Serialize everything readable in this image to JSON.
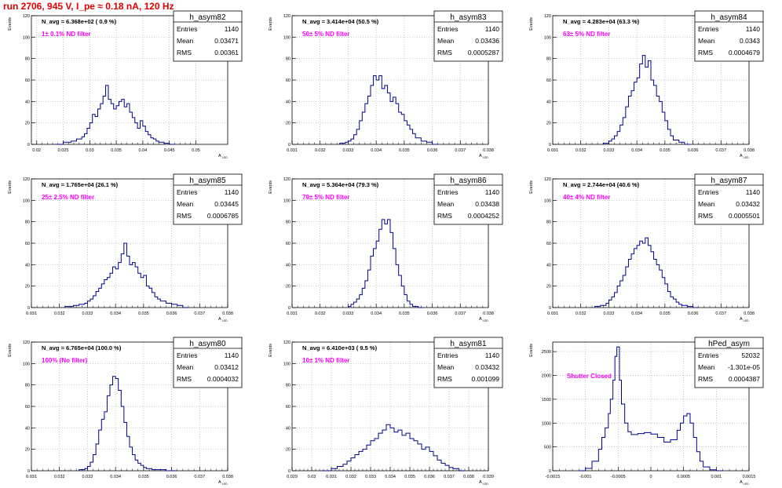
{
  "run_title": "run 2706,   945 V, I_pe ≈ 0.18 nA, 120 Hz",
  "stats_labels": {
    "entries": "Entries",
    "mean": "Mean",
    "rms": "RMS"
  },
  "axis_label_x": "A",
  "axis_label_x_sub": "LED",
  "axis_label_y": "Events",
  "colors": {
    "hist": "#00008b",
    "note": "#ff00ff",
    "title": "#e00000",
    "grid": "#b0b0b0"
  },
  "chart_data": [
    {
      "type": "bar",
      "hist_name": "h_asym82",
      "navg": "N_avg = 6.368e+02 ( 0.9 %)",
      "note": "1± 0.1% ND filter",
      "entries": "1140",
      "mean": "0.03471",
      "rms": "0.00361",
      "xlim": [
        0.019,
        0.056
      ],
      "ylim": [
        0,
        120
      ],
      "xticks": [
        "0.02",
        "0.025",
        "0.03",
        "0.035",
        "0.04",
        "0.045",
        "0.05"
      ],
      "xtick_vals": [
        0.02,
        0.025,
        0.03,
        0.035,
        0.04,
        0.045,
        0.05
      ],
      "yticks": [
        "0",
        "20",
        "40",
        "60",
        "80",
        "100",
        "120"
      ],
      "bins": [
        0.0235,
        0.025,
        0.0265,
        0.0275,
        0.0285,
        0.029,
        0.0295,
        0.03,
        0.0305,
        0.031,
        0.0315,
        0.032,
        0.0325,
        0.033,
        0.0335,
        0.034,
        0.0345,
        0.035,
        0.0355,
        0.036,
        0.0365,
        0.037,
        0.0375,
        0.038,
        0.0385,
        0.039,
        0.0395,
        0.04,
        0.0405,
        0.041,
        0.0415,
        0.042,
        0.0425,
        0.043,
        0.044,
        0.045
      ],
      "values": [
        0,
        2,
        3,
        5,
        7,
        10,
        15,
        20,
        28,
        26,
        33,
        38,
        45,
        55,
        42,
        38,
        33,
        36,
        40,
        42,
        35,
        38,
        30,
        25,
        20,
        15,
        22,
        17,
        12,
        9,
        6,
        5,
        3,
        2,
        1,
        0
      ]
    },
    {
      "type": "bar",
      "hist_name": "h_asym83",
      "navg": "N_avg = 3.414e+04 (50.5 %)",
      "note": "50± 5% ND filter",
      "entries": "1140",
      "mean": "0.03436",
      "rms": "0.0005287",
      "xlim": [
        0.031,
        0.038
      ],
      "ylim": [
        0,
        120
      ],
      "xticks": [
        "0.031",
        "0.032",
        "0.033",
        "0.034",
        "0.035",
        "0.036",
        "0.037",
        "0.038"
      ],
      "xtick_vals": [
        0.031,
        0.032,
        0.033,
        0.034,
        0.035,
        0.036,
        0.037,
        0.038
      ],
      "yticks": [
        "0",
        "20",
        "40",
        "60",
        "80",
        "100",
        "120"
      ],
      "bins": [
        0.0327,
        0.0329,
        0.033,
        0.0331,
        0.0332,
        0.0333,
        0.0334,
        0.0335,
        0.0336,
        0.0337,
        0.0338,
        0.0339,
        0.034,
        0.0341,
        0.0342,
        0.0343,
        0.0344,
        0.0345,
        0.0346,
        0.0347,
        0.0348,
        0.0349,
        0.035,
        0.0351,
        0.0352,
        0.0353,
        0.0354,
        0.0356,
        0.0358,
        0.036
      ],
      "values": [
        1,
        2,
        3,
        5,
        9,
        14,
        22,
        30,
        38,
        45,
        55,
        64,
        60,
        64,
        52,
        55,
        48,
        40,
        44,
        38,
        30,
        28,
        22,
        18,
        14,
        10,
        6,
        3,
        2,
        0
      ]
    },
    {
      "type": "bar",
      "hist_name": "h_asym84",
      "navg": "N_avg = 4.283e+04 (63.3 %)",
      "note": "63± 5% ND filter",
      "entries": "1140",
      "mean": "0.0343",
      "rms": "0.0004679",
      "xlim": [
        0.031,
        0.038
      ],
      "ylim": [
        0,
        120
      ],
      "xticks": [
        "0.031",
        "0.032",
        "0.033",
        "0.034",
        "0.035",
        "0.036",
        "0.037",
        "0.038"
      ],
      "xtick_vals": [
        0.031,
        0.032,
        0.033,
        0.034,
        0.035,
        0.036,
        0.037,
        0.038
      ],
      "yticks": [
        "0",
        "20",
        "40",
        "60",
        "80",
        "100",
        "120"
      ],
      "bins": [
        0.0328,
        0.033,
        0.0331,
        0.0332,
        0.0333,
        0.0334,
        0.0335,
        0.0336,
        0.0337,
        0.0338,
        0.0339,
        0.034,
        0.0341,
        0.0342,
        0.0343,
        0.0344,
        0.0345,
        0.0346,
        0.0347,
        0.0348,
        0.0349,
        0.035,
        0.0351,
        0.0352,
        0.0353,
        0.0355,
        0.0357
      ],
      "values": [
        1,
        3,
        5,
        8,
        12,
        18,
        25,
        35,
        45,
        50,
        58,
        62,
        75,
        83,
        72,
        78,
        60,
        55,
        45,
        40,
        30,
        22,
        14,
        8,
        4,
        2,
        0
      ]
    },
    {
      "type": "bar",
      "hist_name": "h_asym85",
      "navg": "N_avg = 1.765e+04 (26.1 %)",
      "note": "25± 2.5% ND filter",
      "entries": "1140",
      "mean": "0.03445",
      "rms": "0.0006785",
      "xlim": [
        0.031,
        0.038
      ],
      "ylim": [
        0,
        120
      ],
      "xticks": [
        "0.031",
        "0.032",
        "0.033",
        "0.034",
        "0.035",
        "0.036",
        "0.037",
        "0.038"
      ],
      "xtick_vals": [
        0.031,
        0.032,
        0.033,
        0.034,
        0.035,
        0.036,
        0.037,
        0.038
      ],
      "yticks": [
        "0",
        "20",
        "40",
        "60",
        "80",
        "100",
        "120"
      ],
      "bins": [
        0.0322,
        0.0325,
        0.0327,
        0.0329,
        0.033,
        0.0331,
        0.0332,
        0.0333,
        0.0334,
        0.0335,
        0.0336,
        0.0337,
        0.0338,
        0.0339,
        0.034,
        0.0341,
        0.0342,
        0.0343,
        0.0344,
        0.0345,
        0.0346,
        0.0347,
        0.0348,
        0.0349,
        0.035,
        0.0351,
        0.0352,
        0.0353,
        0.0354,
        0.0355,
        0.0356,
        0.0358,
        0.036,
        0.0362,
        0.0364
      ],
      "values": [
        1,
        2,
        3,
        4,
        6,
        8,
        11,
        15,
        18,
        22,
        26,
        28,
        32,
        38,
        36,
        42,
        50,
        60,
        48,
        40,
        42,
        38,
        32,
        28,
        30,
        20,
        18,
        14,
        10,
        8,
        6,
        4,
        3,
        2,
        0
      ]
    },
    {
      "type": "bar",
      "hist_name": "h_asym86",
      "navg": "N_avg = 5.364e+04 (79.3 %)",
      "note": "79± 5% ND filter",
      "entries": "1140",
      "mean": "0.03438",
      "rms": "0.0004252",
      "xlim": [
        0.031,
        0.038
      ],
      "ylim": [
        0,
        120
      ],
      "xticks": [
        "0.031",
        "0.032",
        "0.033",
        "0.034",
        "0.035",
        "0.036",
        "0.037",
        "0.038"
      ],
      "xtick_vals": [
        0.031,
        0.032,
        0.033,
        0.034,
        0.035,
        0.036,
        0.037,
        0.038
      ],
      "yticks": [
        "0",
        "20",
        "40",
        "60",
        "80",
        "100",
        "120"
      ],
      "bins": [
        0.033,
        0.0331,
        0.0332,
        0.0333,
        0.0334,
        0.0335,
        0.0336,
        0.0337,
        0.0338,
        0.0339,
        0.034,
        0.0341,
        0.0342,
        0.0343,
        0.0344,
        0.0345,
        0.0346,
        0.0347,
        0.0348,
        0.0349,
        0.035,
        0.0351,
        0.0352,
        0.0353,
        0.0355
      ],
      "values": [
        1,
        3,
        5,
        8,
        12,
        18,
        25,
        35,
        48,
        55,
        62,
        73,
        82,
        78,
        82,
        70,
        55,
        40,
        30,
        20,
        12,
        6,
        3,
        1,
        0
      ]
    },
    {
      "type": "bar",
      "hist_name": "h_asym87",
      "navg": "N_avg = 2.744e+04 (40.6 %)",
      "note": "40± 4% ND filter",
      "entries": "1140",
      "mean": "0.03432",
      "rms": "0.0005501",
      "xlim": [
        0.031,
        0.038
      ],
      "ylim": [
        0,
        120
      ],
      "xticks": [
        "0.031",
        "0.032",
        "0.033",
        "0.034",
        "0.035",
        "0.036",
        "0.037",
        "0.038"
      ],
      "xtick_vals": [
        0.031,
        0.032,
        0.033,
        0.034,
        0.035,
        0.036,
        0.037,
        0.038
      ],
      "yticks": [
        "0",
        "20",
        "40",
        "60",
        "80",
        "100",
        "120"
      ],
      "bins": [
        0.0325,
        0.0327,
        0.0329,
        0.033,
        0.0331,
        0.0332,
        0.0333,
        0.0334,
        0.0335,
        0.0336,
        0.0337,
        0.0338,
        0.0339,
        0.034,
        0.0341,
        0.0342,
        0.0343,
        0.0344,
        0.0345,
        0.0346,
        0.0347,
        0.0348,
        0.0349,
        0.035,
        0.0351,
        0.0352,
        0.0353,
        0.0354,
        0.0355,
        0.0356,
        0.0358,
        0.036
      ],
      "values": [
        1,
        2,
        4,
        7,
        10,
        14,
        20,
        25,
        30,
        38,
        45,
        50,
        55,
        58,
        62,
        60,
        65,
        58,
        52,
        45,
        40,
        35,
        28,
        22,
        15,
        10,
        8,
        5,
        3,
        2,
        1,
        0
      ]
    },
    {
      "type": "bar",
      "hist_name": "h_asym80",
      "navg": "N_avg = 6.765e+04 (100.0 %)",
      "note": "100% (No filter)",
      "entries": "1140",
      "mean": "0.03412",
      "rms": "0.0004032",
      "xlim": [
        0.031,
        0.038
      ],
      "ylim": [
        0,
        120
      ],
      "xticks": [
        "0.031",
        "0.032",
        "0.033",
        "0.034",
        "0.035",
        "0.036",
        "0.037",
        "0.038"
      ],
      "xtick_vals": [
        0.031,
        0.032,
        0.033,
        0.034,
        0.035,
        0.036,
        0.037,
        0.038
      ],
      "yticks": [
        "0",
        "20",
        "40",
        "60",
        "80",
        "100",
        "120"
      ],
      "bins": [
        0.0327,
        0.0329,
        0.033,
        0.0331,
        0.0332,
        0.0333,
        0.0334,
        0.0335,
        0.0336,
        0.0337,
        0.0338,
        0.0339,
        0.034,
        0.0341,
        0.0342,
        0.0343,
        0.0344,
        0.0345,
        0.0346,
        0.0347,
        0.0348,
        0.0349,
        0.035,
        0.0351,
        0.0352,
        0.0353,
        0.0354,
        0.0356,
        0.0358,
        0.036
      ],
      "values": [
        1,
        2,
        4,
        8,
        15,
        25,
        38,
        48,
        55,
        70,
        80,
        88,
        86,
        75,
        60,
        45,
        32,
        22,
        15,
        10,
        7,
        5,
        3,
        2,
        2,
        1,
        1,
        1,
        0,
        0
      ]
    },
    {
      "type": "bar",
      "hist_name": "h_asym81",
      "navg": "N_avg = 6.410e+03 ( 9.5 %)",
      "note": "10± 1% ND filter",
      "entries": "1140",
      "mean": "0.03432",
      "rms": "0.001099",
      "xlim": [
        0.029,
        0.039
      ],
      "ylim": [
        0,
        120
      ],
      "xticks": [
        "0.029",
        "0.03",
        "0.031",
        "0.032",
        "0.033",
        "0.034",
        "0.035",
        "0.036",
        "0.037",
        "0.038",
        "0.039"
      ],
      "xtick_vals": [
        0.029,
        0.03,
        0.031,
        0.032,
        0.033,
        0.034,
        0.035,
        0.036,
        0.037,
        0.038,
        0.039
      ],
      "yticks": [
        "0",
        "20",
        "40",
        "60",
        "80",
        "100",
        "120"
      ],
      "bins": [
        0.0305,
        0.031,
        0.0313,
        0.0316,
        0.0318,
        0.032,
        0.0322,
        0.0324,
        0.0326,
        0.0328,
        0.033,
        0.0332,
        0.0334,
        0.0336,
        0.0338,
        0.034,
        0.0342,
        0.0344,
        0.0346,
        0.0348,
        0.035,
        0.0352,
        0.0354,
        0.0356,
        0.0358,
        0.036,
        0.0362,
        0.0364,
        0.0366,
        0.0368,
        0.037,
        0.0372,
        0.0375
      ],
      "values": [
        0,
        2,
        4,
        6,
        9,
        12,
        15,
        18,
        20,
        24,
        28,
        30,
        35,
        38,
        43,
        40,
        36,
        38,
        33,
        35,
        30,
        28,
        25,
        20,
        22,
        18,
        14,
        10,
        7,
        5,
        3,
        2,
        0
      ]
    },
    {
      "type": "bar",
      "hist_name": "hPed_asym",
      "navg": "",
      "note": "Shutter Closed",
      "entries": "52032",
      "mean": "-1.301e-05",
      "rms": "0.0004387",
      "xlim": [
        -0.0015,
        0.0015
      ],
      "ylim": [
        0,
        2700
      ],
      "xticks": [
        "-0.0015",
        "-0.001",
        "-0.0005",
        "0",
        "0.0005",
        "0.001",
        "0.0015"
      ],
      "xtick_vals": [
        -0.0015,
        -0.001,
        -0.0005,
        0,
        0.0005,
        0.001,
        0.0015
      ],
      "yticks": [
        "0",
        "500",
        "1000",
        "1500",
        "2000",
        "2500"
      ],
      "bins": [
        -0.0011,
        -0.001,
        -0.0009,
        -0.0008,
        -0.00075,
        -0.0007,
        -0.00065,
        -0.00062,
        -0.00058,
        -0.00055,
        -0.00052,
        -0.00048,
        -0.00045,
        -0.0004,
        -0.00035,
        -0.0003,
        -0.0002,
        -0.0001,
        0.0,
        0.0001,
        0.0002,
        0.0003,
        0.0004,
        0.00045,
        0.0005,
        0.00055,
        0.0006,
        0.00065,
        0.0007,
        0.00075,
        0.0008,
        0.0009,
        0.001
      ],
      "values": [
        0,
        50,
        200,
        450,
        700,
        900,
        1200,
        1500,
        1900,
        2400,
        2600,
        1900,
        1400,
        1000,
        820,
        760,
        780,
        800,
        770,
        700,
        600,
        650,
        850,
        1000,
        1150,
        1200,
        1000,
        700,
        400,
        200,
        80,
        20,
        0
      ]
    }
  ]
}
